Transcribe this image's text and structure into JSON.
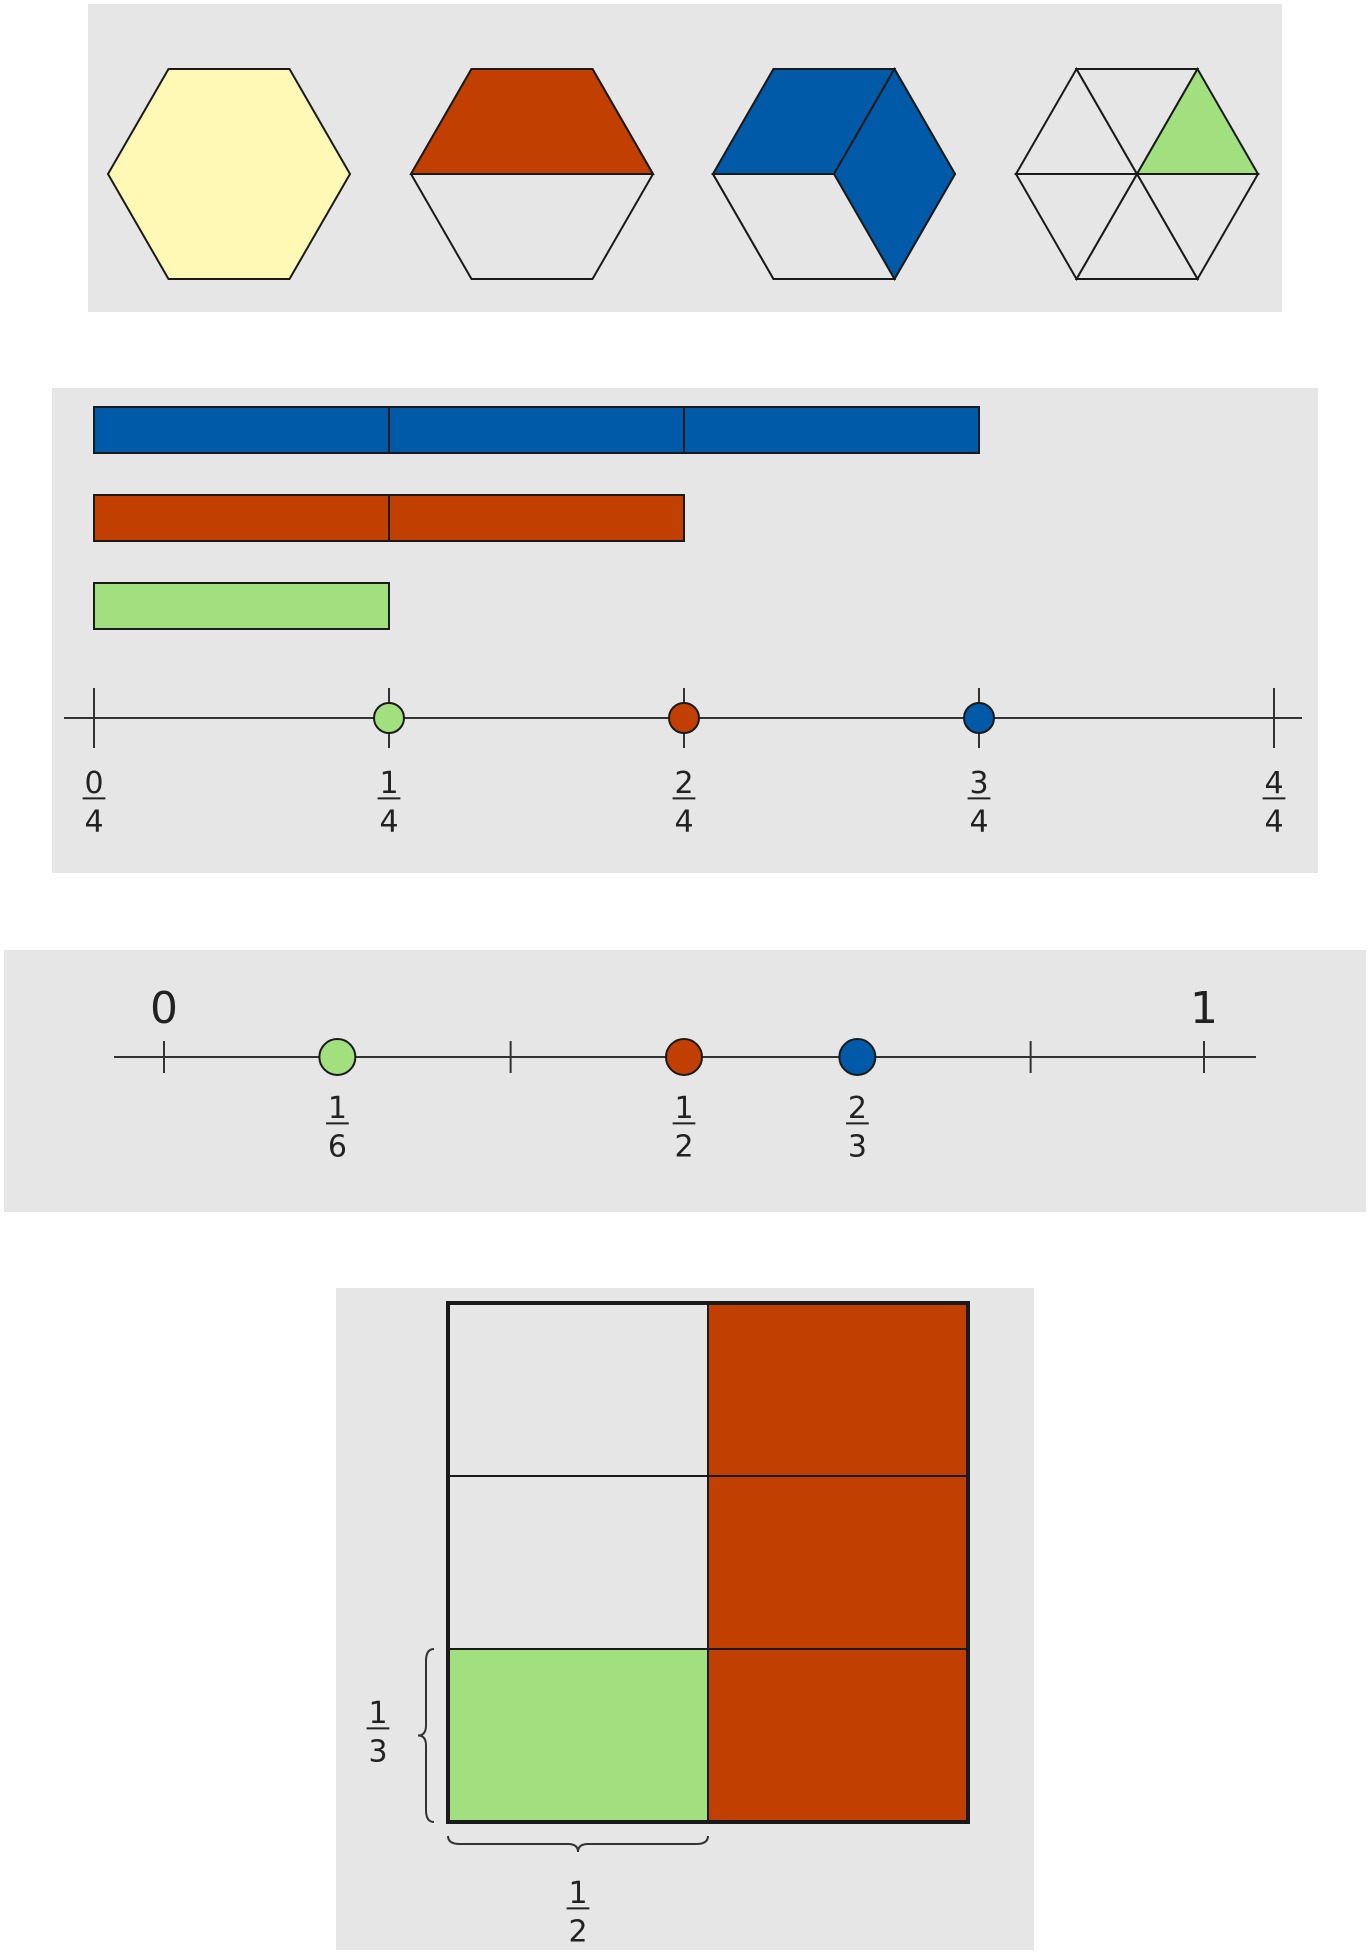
{
  "colors": {
    "panel": "#e6e6e6",
    "stroke": "#1a1a1a",
    "yellow": "#fff9b5",
    "orange": "#c13f00",
    "blue": "#005aa7",
    "green": "#a2df7f",
    "empty": "#e6e6e6"
  },
  "hexagons": [
    {
      "name": "whole-hexagon",
      "shape": "hexagon",
      "fill": "yellow"
    },
    {
      "name": "half-hexagon",
      "shape": "trapezoid-top",
      "fill": "orange"
    },
    {
      "name": "two-thirds-hexagon",
      "shape": "two-rhombi",
      "fill": "blue"
    },
    {
      "name": "one-sixth-hexagon",
      "shape": "triangle",
      "fill": "green"
    }
  ],
  "bars_panel": {
    "bars": [
      {
        "name": "three-quarters-bar",
        "fill": "blue",
        "segments": 3
      },
      {
        "name": "two-quarters-bar",
        "fill": "orange",
        "segments": 2
      },
      {
        "name": "one-quarter-bar",
        "fill": "green",
        "segments": 1
      }
    ],
    "ticks": [
      {
        "num": "0",
        "den": "4"
      },
      {
        "num": "1",
        "den": "4"
      },
      {
        "num": "2",
        "den": "4"
      },
      {
        "num": "3",
        "den": "4"
      },
      {
        "num": "4",
        "den": "4"
      }
    ],
    "points": [
      {
        "at": 1,
        "fill": "green"
      },
      {
        "at": 2,
        "fill": "orange"
      },
      {
        "at": 3,
        "fill": "blue"
      }
    ]
  },
  "number_line": {
    "start_label": "0",
    "end_label": "1",
    "minor_ticks": [
      0.3333,
      0.8333
    ],
    "points": [
      {
        "value": 0.1667,
        "fill": "green",
        "num": "1",
        "den": "6"
      },
      {
        "value": 0.5,
        "fill": "orange",
        "num": "1",
        "den": "2"
      },
      {
        "value": 0.6667,
        "fill": "blue",
        "num": "2",
        "den": "3"
      }
    ]
  },
  "area_model": {
    "cells": [
      [
        "empty",
        "orange"
      ],
      [
        "empty",
        "orange"
      ],
      [
        "green",
        "orange"
      ]
    ],
    "row_brace": {
      "num": "1",
      "den": "3"
    },
    "col_brace": {
      "num": "1",
      "den": "2"
    }
  }
}
